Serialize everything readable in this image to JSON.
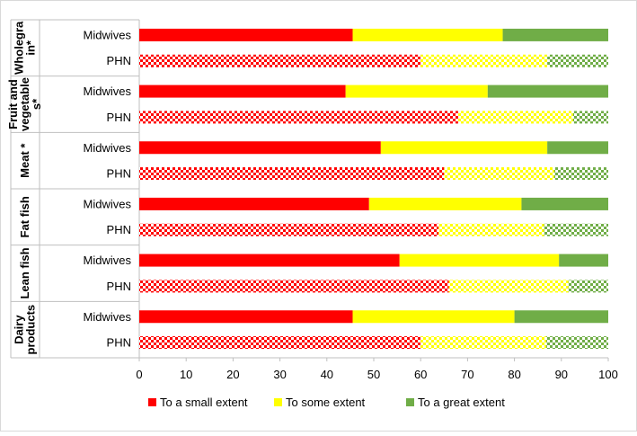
{
  "chart_data": {
    "type": "bar",
    "orientation": "horizontal",
    "stacked": true,
    "groups": [
      {
        "label": "Wholegrain*",
        "label_lines": [
          "Wholegra",
          "in*"
        ]
      },
      {
        "label": "Fruit and vegetables*",
        "label_lines": [
          "Fruit and",
          "vegetable",
          "s*"
        ]
      },
      {
        "label": "Meat *",
        "label_lines": [
          "Meat *"
        ]
      },
      {
        "label": "Fat fish",
        "label_lines": [
          "Fat fish"
        ]
      },
      {
        "label": "Lean fish",
        "label_lines": [
          "Lean fish"
        ]
      },
      {
        "label": "Dairy products",
        "label_lines": [
          "Dairy",
          "products"
        ]
      }
    ],
    "rows": [
      "Midwives",
      "PHN"
    ],
    "series": [
      {
        "name": "To a small extent",
        "color": "#ff0000",
        "values": [
          [
            45.5,
            60.0
          ],
          [
            44.0,
            68.0
          ],
          [
            51.5,
            65.0
          ],
          [
            49.0,
            63.8
          ],
          [
            55.5,
            66.0
          ],
          [
            45.5,
            60.0
          ]
        ]
      },
      {
        "name": "To some extent",
        "color": "#ffff00",
        "values": [
          [
            32.0,
            27.0
          ],
          [
            30.3,
            24.5
          ],
          [
            35.5,
            23.5
          ],
          [
            32.5,
            22.5
          ],
          [
            34.0,
            25.5
          ],
          [
            34.5,
            26.8
          ]
        ]
      },
      {
        "name": "To a great extent",
        "color": "#70ad47",
        "values": [
          [
            22.5,
            13.0
          ],
          [
            25.7,
            7.5
          ],
          [
            13.0,
            11.5
          ],
          [
            18.5,
            13.7
          ],
          [
            10.5,
            8.5
          ],
          [
            20.0,
            13.2
          ]
        ]
      }
    ],
    "row_styles": {
      "Midwives": "solid",
      "PHN": "checkered"
    },
    "xlim": [
      0,
      100
    ],
    "xticks": [
      0,
      10,
      20,
      30,
      40,
      50,
      60,
      70,
      80,
      90,
      100
    ],
    "title": "",
    "xlabel": "",
    "ylabel": "",
    "legend_position": "bottom",
    "grid": false
  }
}
